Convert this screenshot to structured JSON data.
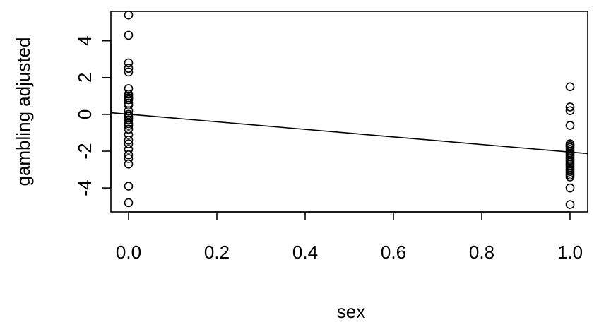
{
  "chart_data": {
    "type": "scatter",
    "title": "",
    "xlabel": "sex",
    "ylabel": "gambling adjusted",
    "xlim": [
      -0.04,
      1.04
    ],
    "ylim": [
      -5.3,
      5.6
    ],
    "x_ticks": [
      0.0,
      0.2,
      0.4,
      0.6,
      0.8,
      1.0
    ],
    "x_tick_labels": [
      "0.0",
      "0.2",
      "0.4",
      "0.6",
      "0.8",
      "1.0"
    ],
    "y_ticks": [
      -4,
      -2,
      0,
      2,
      4
    ],
    "y_tick_labels": [
      "-4",
      "-2",
      "0",
      "2",
      "4"
    ],
    "grid": false,
    "legend": "none",
    "series": [
      {
        "x": [
          0,
          0,
          0,
          0,
          0,
          0,
          0,
          0,
          0,
          0,
          0,
          0,
          0,
          0,
          0,
          0,
          0,
          0,
          0,
          0,
          0,
          0,
          0,
          0,
          0,
          0,
          0,
          0,
          0,
          0,
          1,
          1,
          1,
          1,
          1,
          1,
          1,
          1,
          1,
          1,
          1,
          1,
          1,
          1,
          1,
          1,
          1,
          1,
          1,
          1,
          1,
          1,
          1,
          1,
          1,
          1
        ],
        "y": [
          5.4,
          4.3,
          2.8,
          2.5,
          2.3,
          1.4,
          1.1,
          0.9,
          0.8,
          0.6,
          0.2,
          0.0,
          -0.2,
          -0.5,
          -0.8,
          -1.1,
          -1.4,
          -1.9,
          -2.4,
          -2.7,
          -3.9,
          -4.8,
          -0.3,
          0.5,
          1.0,
          -1.6,
          -2.2,
          -0.1,
          0.9,
          -0.6,
          1.5,
          0.4,
          0.2,
          -0.6,
          -1.6,
          -1.7,
          -1.8,
          -2.0,
          -2.1,
          -2.3,
          -2.4,
          -2.6,
          -2.8,
          -3.0,
          -3.2,
          -3.4,
          -4.0,
          -4.9,
          -2.5,
          -1.9,
          -2.7,
          -3.1,
          -2.2,
          -1.7,
          -3.3,
          -2.9
        ]
      }
    ],
    "fit_line": {
      "x": [
        -0.04,
        1.04
      ],
      "y": [
        0.09,
        -2.13
      ]
    }
  }
}
